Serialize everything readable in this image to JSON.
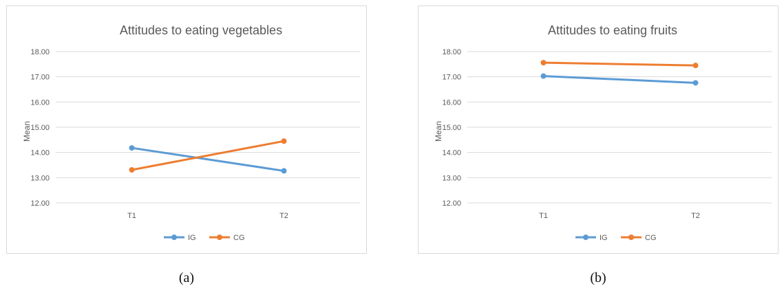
{
  "chart_data": [
    {
      "type": "line",
      "title": "Attitudes to eating vegetables",
      "ylabel": "Mean",
      "xlabel": "",
      "categories": [
        "T1",
        "T2"
      ],
      "ylim": [
        12,
        18
      ],
      "yticks": [
        "12.00",
        "13.00",
        "14.00",
        "15.00",
        "16.00",
        "17.00",
        "18.00"
      ],
      "grid": true,
      "legend": "bottom",
      "series": [
        {
          "name": "IG",
          "values": [
            14.18,
            13.27
          ],
          "color": "#5b9bd5"
        },
        {
          "name": "CG",
          "values": [
            13.31,
            14.45
          ],
          "color": "#ed7d31"
        }
      ],
      "caption": "(a)"
    },
    {
      "type": "line",
      "title": "Attitudes to eating fruits",
      "ylabel": "Mean",
      "xlabel": "",
      "categories": [
        "T1",
        "T2"
      ],
      "ylim": [
        12,
        18
      ],
      "yticks": [
        "12.00",
        "13.00",
        "14.00",
        "15.00",
        "16.00",
        "17.00",
        "18.00"
      ],
      "grid": true,
      "legend": "bottom",
      "series": [
        {
          "name": "IG",
          "values": [
            17.03,
            16.76
          ],
          "color": "#5b9bd5"
        },
        {
          "name": "CG",
          "values": [
            17.56,
            17.45
          ],
          "color": "#ed7d31"
        }
      ],
      "caption": "(b)"
    }
  ]
}
